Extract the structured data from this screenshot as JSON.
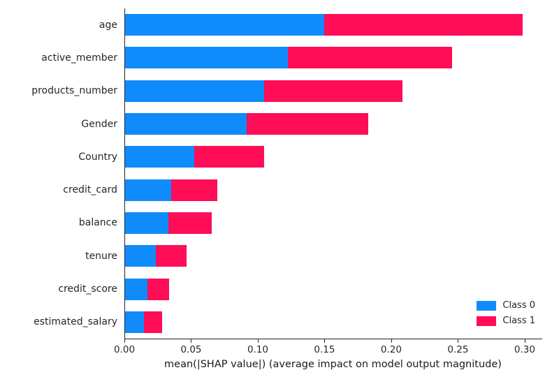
{
  "chart_data": {
    "type": "bar",
    "orientation": "horizontal",
    "stacked": true,
    "title": "",
    "xlabel": "mean(|SHAP value|) (average impact on model output magnitude)",
    "ylabel": "",
    "categories": [
      "age",
      "active_member",
      "products_number",
      "Gender",
      "Country",
      "credit_card",
      "balance",
      "tenure",
      "credit_score",
      "estimated_salary"
    ],
    "series": [
      {
        "name": "Class 0",
        "color": "#108bfb",
        "values": [
          0.149,
          0.122,
          0.104,
          0.091,
          0.052,
          0.0345,
          0.0325,
          0.023,
          0.0165,
          0.014
        ]
      },
      {
        "name": "Class 1",
        "color": "#ff0d57",
        "values": [
          0.149,
          0.123,
          0.104,
          0.091,
          0.052,
          0.0345,
          0.0325,
          0.023,
          0.0165,
          0.014
        ]
      }
    ],
    "xlim": [
      0,
      0.3126
    ],
    "xticks": [
      0,
      0.05,
      0.1,
      0.15,
      0.2,
      0.25,
      0.3
    ],
    "xtick_labels": [
      "0.00",
      "0.05",
      "0.10",
      "0.15",
      "0.20",
      "0.25",
      "0.30"
    ],
    "legend_position": "lower right",
    "grid": false,
    "axis_color": "#262626"
  }
}
